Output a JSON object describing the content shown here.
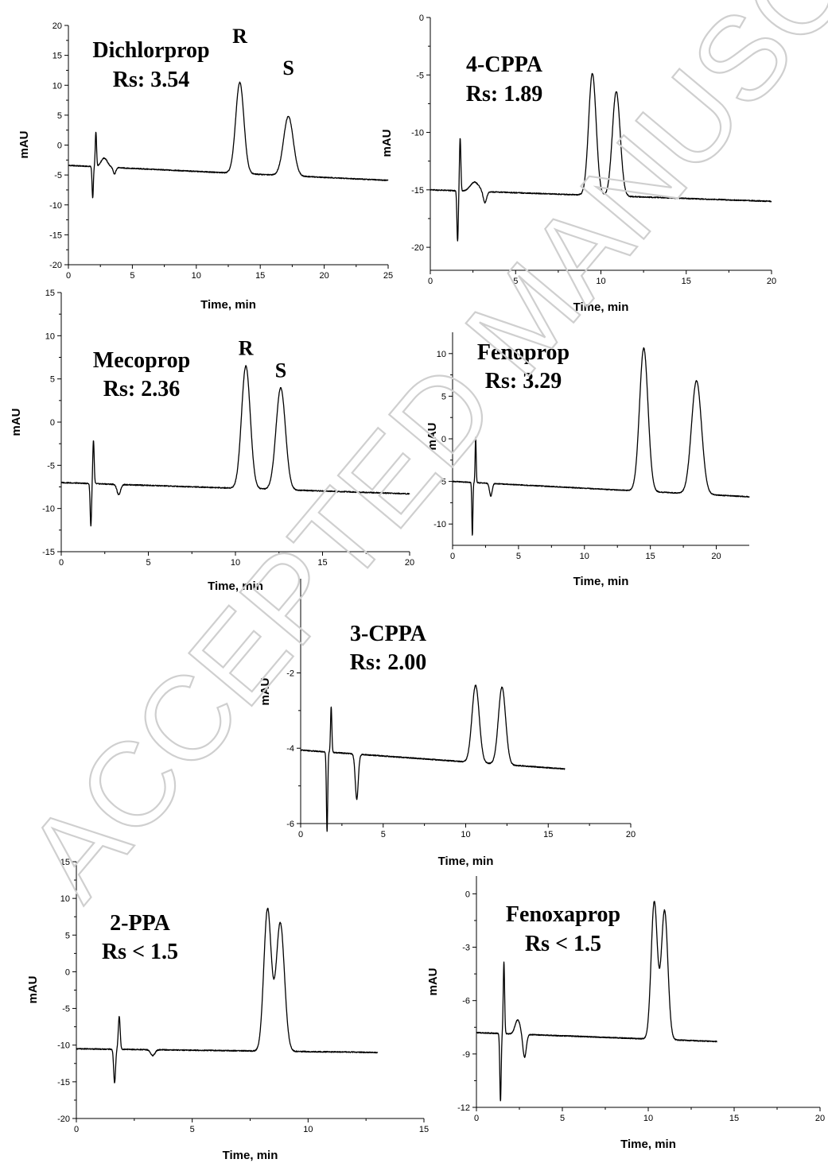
{
  "watermark": "ACCEPTED MANUSCRIPT",
  "chart_data": [
    {
      "type": "line",
      "id": "dichlorprop",
      "xlabel": "Time, min",
      "ylabel": "mAU",
      "xlim": [
        0,
        25
      ],
      "ylim": [
        -20,
        20
      ],
      "xticks": [
        0,
        5,
        10,
        15,
        20,
        25
      ],
      "yticks": [
        -20,
        -15,
        -10,
        -5,
        0,
        5,
        10,
        15,
        20
      ],
      "annotation": [
        "Dichlorprop",
        "Rs: 3.54"
      ],
      "peak_labels": [
        {
          "text": "R",
          "x": 13.4,
          "y": 15.2
        },
        {
          "text": "S",
          "x": 17.2,
          "y": 9.9
        }
      ],
      "series": [
        {
          "baseline": [
            [
              0,
              -3.4
            ],
            [
              25,
              -5.9
            ]
          ],
          "end_x": 25,
          "peaks": [
            {
              "x": 13.4,
              "height": 15.2,
              "width": 0.32
            },
            {
              "x": 17.2,
              "height": 9.9,
              "width": 0.38
            }
          ],
          "features": [
            {
              "x": 1.9,
              "height": -5.3,
              "width": 0.05
            },
            {
              "x": 2.15,
              "height": 5.8,
              "width": 0.05
            },
            {
              "x": 2.8,
              "height": 1.5,
              "width": 0.25
            },
            {
              "x": 3.6,
              "height": -1.1,
              "width": 0.1
            }
          ]
        }
      ]
    },
    {
      "type": "line",
      "id": "4-cppa",
      "xlabel": "Time, min",
      "ylabel": "mAU",
      "xlim": [
        0,
        20
      ],
      "ylim": [
        -22,
        0
      ],
      "xticks": [
        0,
        5,
        10,
        15,
        20
      ],
      "yticks": [
        -20,
        -15,
        -10,
        -5,
        0
      ],
      "annotation": [
        "4-CPPA",
        "Rs: 1.89"
      ],
      "peak_labels": [],
      "series": [
        {
          "baseline": [
            [
              0,
              -15.0
            ],
            [
              20,
              -16.0
            ]
          ],
          "end_x": 20,
          "peaks": [
            {
              "x": 9.5,
              "height": 10.6,
              "width": 0.22
            },
            {
              "x": 10.9,
              "height": 9.1,
              "width": 0.23
            }
          ],
          "features": [
            {
              "x": 1.6,
              "height": -4.4,
              "width": 0.04
            },
            {
              "x": 1.75,
              "height": 4.6,
              "width": 0.04
            },
            {
              "x": 2.6,
              "height": 0.8,
              "width": 0.25
            },
            {
              "x": 3.2,
              "height": -1.0,
              "width": 0.1
            }
          ]
        }
      ]
    },
    {
      "type": "line",
      "id": "mecoprop",
      "xlabel": "Time, min",
      "ylabel": "mAU",
      "xlim": [
        0,
        20
      ],
      "ylim": [
        -15,
        15
      ],
      "xticks": [
        0,
        5,
        10,
        15,
        20
      ],
      "yticks": [
        -15,
        -10,
        -5,
        0,
        5,
        10,
        15
      ],
      "annotation": [
        "Mecoprop",
        "Rs: 2.36"
      ],
      "peak_labels": [
        {
          "text": "R",
          "x": 10.6,
          "y": 6.5
        },
        {
          "text": "S",
          "x": 12.6,
          "y": 3.9
        }
      ],
      "series": [
        {
          "baseline": [
            [
              0,
              -7.0
            ],
            [
              20,
              -8.3
            ]
          ],
          "end_x": 20,
          "peaks": [
            {
              "x": 10.6,
              "height": 14.2,
              "width": 0.25
            },
            {
              "x": 12.6,
              "height": 11.8,
              "width": 0.27
            }
          ],
          "features": [
            {
              "x": 1.7,
              "height": -4.9,
              "width": 0.04
            },
            {
              "x": 1.85,
              "height": 5.0,
              "width": 0.04
            },
            {
              "x": 3.3,
              "height": -1.2,
              "width": 0.1
            }
          ]
        }
      ]
    },
    {
      "type": "line",
      "id": "fenoprop",
      "xlabel": "Time, min",
      "ylabel": "mAU",
      "xlim": [
        0,
        22.5
      ],
      "ylim": [
        -12.5,
        12.5
      ],
      "xticks": [
        0,
        5,
        10,
        15,
        20
      ],
      "yticks": [
        -10,
        -5,
        0,
        5,
        10
      ],
      "annotation": [
        "Fenoprop",
        "Rs: 3.29"
      ],
      "peak_labels": [],
      "series": [
        {
          "baseline": [
            [
              0,
              -5.0
            ],
            [
              22.5,
              -6.8
            ]
          ],
          "end_x": 22.5,
          "peaks": [
            {
              "x": 14.5,
              "height": 16.8,
              "width": 0.32
            },
            {
              "x": 18.5,
              "height": 13.3,
              "width": 0.38
            }
          ],
          "features": [
            {
              "x": 1.5,
              "height": -6.2,
              "width": 0.04
            },
            {
              "x": 1.75,
              "height": 5.3,
              "width": 0.04
            },
            {
              "x": 2.9,
              "height": -1.5,
              "width": 0.1
            }
          ]
        }
      ]
    },
    {
      "type": "line",
      "id": "3-cppa",
      "xlabel": "Time, min",
      "ylabel": "mAU",
      "xlim": [
        0,
        20
      ],
      "ylim": [
        -6,
        0.5
      ],
      "xticks": [
        0,
        5,
        10,
        15,
        20
      ],
      "yticks": [
        -6,
        -4,
        -2
      ],
      "annotation": [
        "3-CPPA",
        "Rs: 2.00"
      ],
      "peak_labels": [],
      "series": [
        {
          "baseline": [
            [
              0,
              -4.05
            ],
            [
              16,
              -4.55
            ]
          ],
          "end_x": 16,
          "peaks": [
            {
              "x": 10.6,
              "height": 2.05,
              "width": 0.22
            },
            {
              "x": 12.2,
              "height": 2.05,
              "width": 0.22
            }
          ],
          "features": [
            {
              "x": 1.6,
              "height": -2.1,
              "width": 0.04
            },
            {
              "x": 1.85,
              "height": 1.2,
              "width": 0.04
            },
            {
              "x": 3.4,
              "height": -1.2,
              "width": 0.09
            }
          ]
        }
      ]
    },
    {
      "type": "line",
      "id": "2-ppa",
      "xlabel": "Time, min",
      "ylabel": "mAU",
      "xlim": [
        0,
        15
      ],
      "ylim": [
        -20,
        15
      ],
      "xticks": [
        0,
        5,
        10,
        15
      ],
      "yticks": [
        -20,
        -15,
        -10,
        -5,
        0,
        5,
        10,
        15
      ],
      "annotation": [
        "2-PPA",
        "Rs < 1.5"
      ],
      "peak_labels": [],
      "series": [
        {
          "baseline": [
            [
              0,
              -10.5
            ],
            [
              13,
              -11.0
            ]
          ],
          "end_x": 13,
          "peaks": [
            {
              "x": 8.25,
              "height": 19.3,
              "width": 0.16
            },
            {
              "x": 8.8,
              "height": 17.5,
              "width": 0.18
            }
          ],
          "features": [
            {
              "x": 1.65,
              "height": -4.6,
              "width": 0.04
            },
            {
              "x": 1.85,
              "height": 4.5,
              "width": 0.04
            },
            {
              "x": 3.3,
              "height": -0.8,
              "width": 0.09
            }
          ]
        }
      ]
    },
    {
      "type": "line",
      "id": "fenoxaprop",
      "xlabel": "Time, min",
      "ylabel": "mAU",
      "xlim": [
        0,
        20
      ],
      "ylim": [
        -12,
        1
      ],
      "xticks": [
        0,
        5,
        10,
        15,
        20
      ],
      "yticks": [
        -12,
        -9,
        -6,
        -3,
        0
      ],
      "annotation": [
        "Fenoxaprop",
        "Rs < 1.5"
      ],
      "peak_labels": [],
      "series": [
        {
          "baseline": [
            [
              0,
              -7.8
            ],
            [
              14,
              -8.3
            ]
          ],
          "end_x": 14,
          "peaks": [
            {
              "x": 10.35,
              "height": 7.7,
              "width": 0.18
            },
            {
              "x": 10.95,
              "height": 7.25,
              "width": 0.19
            }
          ],
          "features": [
            {
              "x": 1.4,
              "height": -3.8,
              "width": 0.04
            },
            {
              "x": 1.6,
              "height": 4.0,
              "width": 0.04
            },
            {
              "x": 2.4,
              "height": 0.8,
              "width": 0.15
            },
            {
              "x": 2.8,
              "height": -1.3,
              "width": 0.1
            }
          ]
        }
      ]
    }
  ]
}
